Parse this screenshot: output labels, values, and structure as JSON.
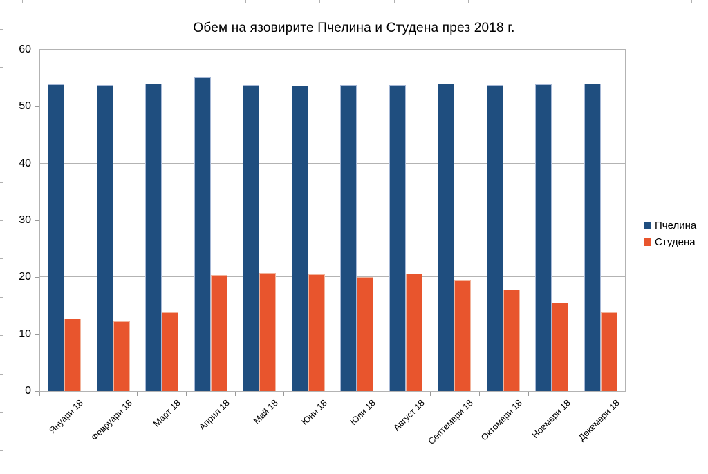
{
  "title": "Обем на язовирите Пчелина и Студена през 2018 г.",
  "legend": {
    "items": [
      {
        "label": "Пчелина",
        "color": "#1f4e7f"
      },
      {
        "label": "Студена",
        "color": "#e8552d"
      }
    ]
  },
  "chart_data": {
    "type": "bar",
    "title": "Обем на язовирите Пчелина и Студена през 2018 г.",
    "categories": [
      "Януари 18",
      "Февруари 18",
      "Март 18",
      "Април 18",
      "Май 18",
      "Юни 18",
      "Юли 18",
      "Август 18",
      "Септември 18",
      "Октомври 18",
      "Ноември 18",
      "Декември 18"
    ],
    "series": [
      {
        "name": "Пчелина",
        "color": "#1f4e7f",
        "values": [
          53.9,
          53.8,
          54.1,
          55.1,
          53.8,
          53.7,
          53.8,
          53.8,
          54.0,
          53.8,
          53.9,
          54.0
        ]
      },
      {
        "name": "Студена",
        "color": "#e8552d",
        "values": [
          12.7,
          12.3,
          13.9,
          20.4,
          20.8,
          20.5,
          20.0,
          20.7,
          19.5,
          17.8,
          15.6,
          13.9
        ]
      }
    ],
    "xlabel": "",
    "ylabel": "",
    "ylim": [
      0,
      60
    ],
    "yticks": [
      0,
      10,
      20,
      30,
      40,
      50,
      60
    ],
    "grid": true,
    "legend_position": "right"
  }
}
